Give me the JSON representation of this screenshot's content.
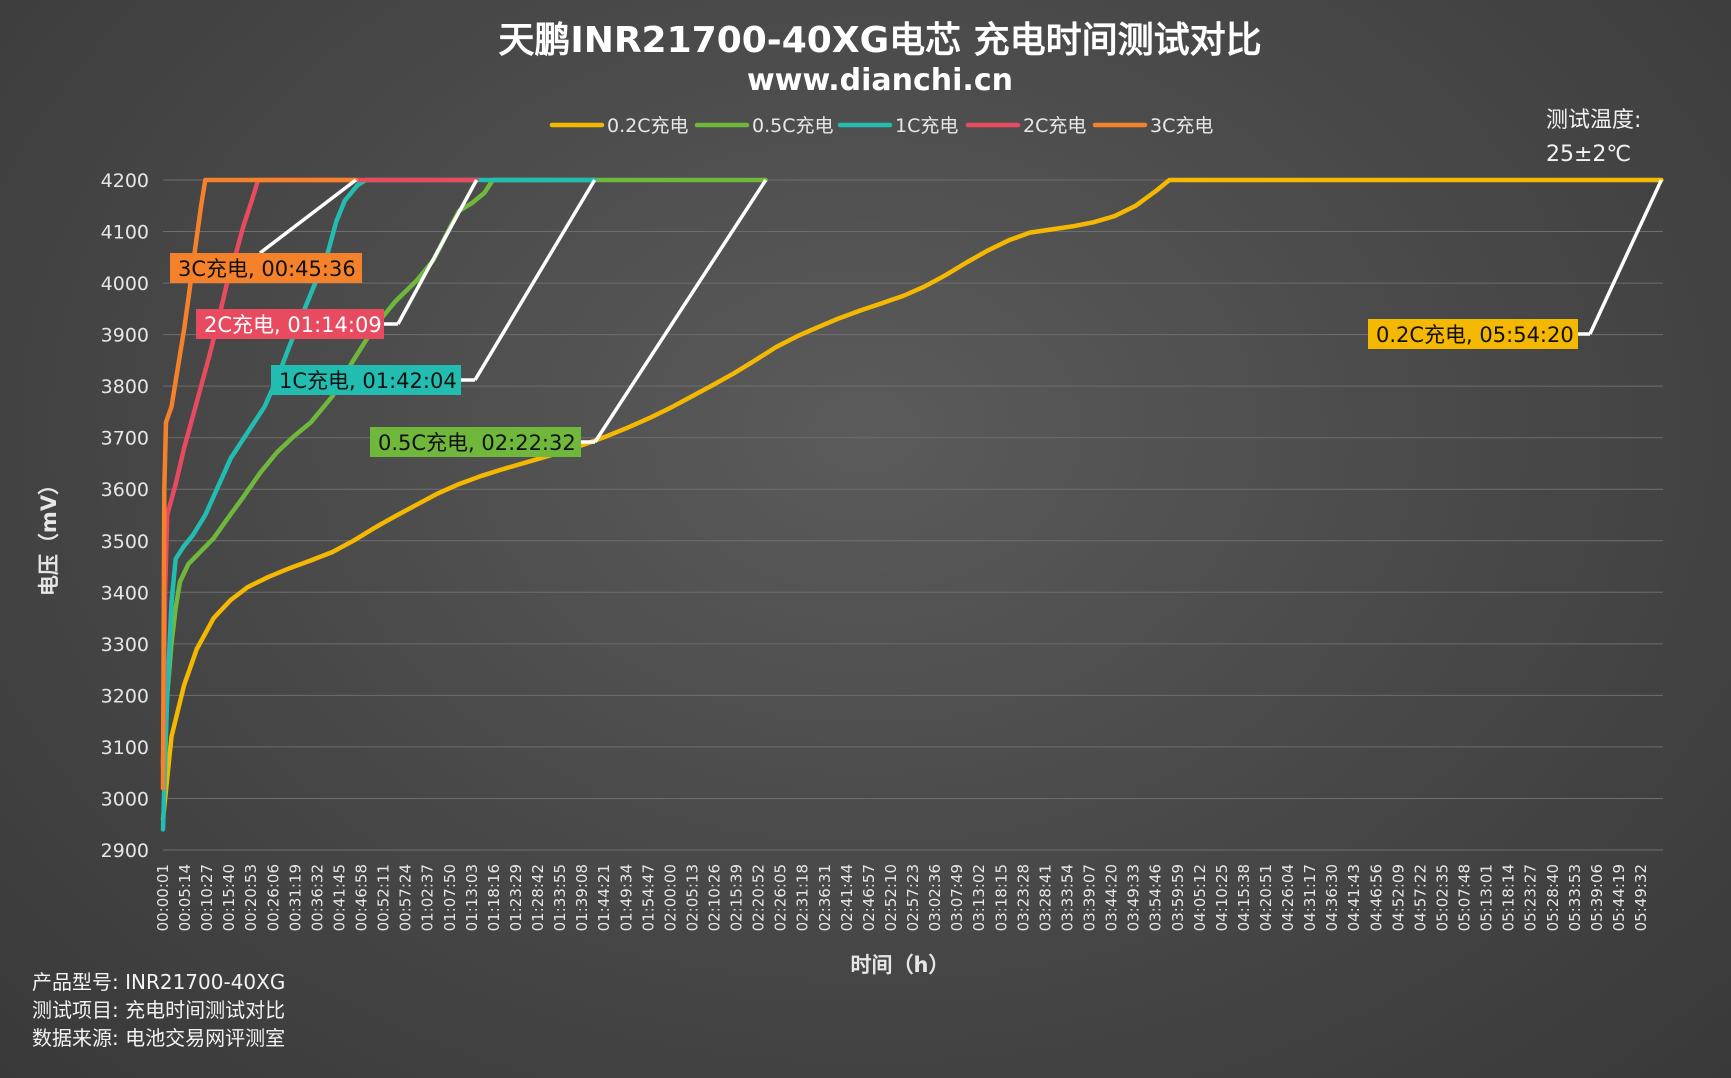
{
  "chart_data": {
    "type": "line",
    "title": "天鹏INR21700-40XG电芯 充电时间测试对比",
    "subtitle": "www.dianchi.cn",
    "xlabel": "时间（h）",
    "ylabel": "电压（mV）",
    "ylim": [
      2900,
      4200
    ],
    "yticks": [
      2900,
      3000,
      3100,
      3200,
      3300,
      3400,
      3500,
      3600,
      3700,
      3800,
      3900,
      4000,
      4100,
      4200
    ],
    "x_tick_labels": [
      "00:00:01",
      "00:05:14",
      "00:10:27",
      "00:15:40",
      "00:20:53",
      "00:26:06",
      "00:31:19",
      "00:36:32",
      "00:41:45",
      "00:46:58",
      "00:52:11",
      "00:57:24",
      "01:02:37",
      "01:07:50",
      "01:13:03",
      "01:18:16",
      "01:23:29",
      "01:28:42",
      "01:33:55",
      "01:39:08",
      "01:44:21",
      "01:49:34",
      "01:54:47",
      "02:00:00",
      "02:05:13",
      "02:10:26",
      "02:15:39",
      "02:20:52",
      "02:26:05",
      "02:31:18",
      "02:36:31",
      "02:41:44",
      "02:46:57",
      "02:52:10",
      "02:57:23",
      "03:02:36",
      "03:07:49",
      "03:13:02",
      "03:18:15",
      "03:23:28",
      "03:28:41",
      "03:33:54",
      "03:39:07",
      "03:44:20",
      "03:49:33",
      "03:54:46",
      "03:59:59",
      "04:05:12",
      "04:10:25",
      "04:15:38",
      "04:20:51",
      "04:26:04",
      "04:31:17",
      "04:36:30",
      "04:41:43",
      "04:46:56",
      "04:52:09",
      "04:57:22",
      "05:02:35",
      "05:07:48",
      "05:13:01",
      "05:18:14",
      "05:23:27",
      "05:28:40",
      "05:33:53",
      "05:39:06",
      "05:44:19",
      "05:49:32"
    ],
    "grid": true,
    "legend_position": "top",
    "series": [
      {
        "name": "0.2C充电",
        "color": "#f5b800",
        "points": [
          [
            0,
            2960
          ],
          [
            2,
            3120
          ],
          [
            5,
            3220
          ],
          [
            8,
            3290
          ],
          [
            12,
            3350
          ],
          [
            16,
            3385
          ],
          [
            20,
            3410
          ],
          [
            25,
            3430
          ],
          [
            30,
            3447
          ],
          [
            35,
            3462
          ],
          [
            40,
            3478
          ],
          [
            45,
            3500
          ],
          [
            50,
            3525
          ],
          [
            55,
            3548
          ],
          [
            60,
            3570
          ],
          [
            65,
            3592
          ],
          [
            70,
            3610
          ],
          [
            75,
            3625
          ],
          [
            80,
            3638
          ],
          [
            85,
            3650
          ],
          [
            90,
            3662
          ],
          [
            95,
            3674
          ],
          [
            100,
            3688
          ],
          [
            105,
            3703
          ],
          [
            110,
            3720
          ],
          [
            115,
            3738
          ],
          [
            120,
            3758
          ],
          [
            125,
            3780
          ],
          [
            130,
            3802
          ],
          [
            135,
            3825
          ],
          [
            140,
            3850
          ],
          [
            145,
            3876
          ],
          [
            150,
            3897
          ],
          [
            155,
            3915
          ],
          [
            160,
            3932
          ],
          [
            165,
            3947
          ],
          [
            170,
            3961
          ],
          [
            175,
            3975
          ],
          [
            180,
            3993
          ],
          [
            185,
            4015
          ],
          [
            190,
            4040
          ],
          [
            195,
            4063
          ],
          [
            200,
            4083
          ],
          [
            205,
            4098
          ],
          [
            210,
            4104
          ],
          [
            215,
            4110
          ],
          [
            220,
            4118
          ],
          [
            225,
            4130
          ],
          [
            230,
            4150
          ],
          [
            235,
            4180
          ],
          [
            238,
            4200
          ],
          [
            354.33,
            4200
          ]
        ]
      },
      {
        "name": "0.5C充电",
        "color": "#70b83c",
        "points": [
          [
            0,
            3070
          ],
          [
            1,
            3200
          ],
          [
            2,
            3300
          ],
          [
            3,
            3370
          ],
          [
            4,
            3420
          ],
          [
            6,
            3455
          ],
          [
            9,
            3480
          ],
          [
            12,
            3505
          ],
          [
            15,
            3540
          ],
          [
            19,
            3585
          ],
          [
            23,
            3632
          ],
          [
            27,
            3672
          ],
          [
            31,
            3703
          ],
          [
            35,
            3730
          ],
          [
            40,
            3780
          ],
          [
            45,
            3850
          ],
          [
            50,
            3915
          ],
          [
            55,
            3965
          ],
          [
            60,
            4005
          ],
          [
            64,
            4045
          ],
          [
            68,
            4110
          ],
          [
            70,
            4140
          ],
          [
            73,
            4155
          ],
          [
            76,
            4175
          ],
          [
            78,
            4200
          ],
          [
            142.53,
            4200
          ]
        ]
      },
      {
        "name": "1C充电",
        "color": "#22bdb0",
        "points": [
          [
            0,
            2940
          ],
          [
            1,
            3200
          ],
          [
            2,
            3380
          ],
          [
            3,
            3465
          ],
          [
            5,
            3490
          ],
          [
            7,
            3510
          ],
          [
            10,
            3550
          ],
          [
            13,
            3605
          ],
          [
            16,
            3660
          ],
          [
            20,
            3710
          ],
          [
            24,
            3760
          ],
          [
            27,
            3815
          ],
          [
            30,
            3880
          ],
          [
            33,
            3940
          ],
          [
            36,
            4000
          ],
          [
            39,
            4060
          ],
          [
            41,
            4120
          ],
          [
            43,
            4160
          ],
          [
            46,
            4190
          ],
          [
            48,
            4200
          ],
          [
            102.07,
            4200
          ]
        ]
      },
      {
        "name": "2C充电",
        "color": "#e84a5f",
        "points": [
          [
            0,
            3060
          ],
          [
            0.5,
            3400
          ],
          [
            1,
            3550
          ],
          [
            3,
            3610
          ],
          [
            5,
            3680
          ],
          [
            7,
            3740
          ],
          [
            9,
            3800
          ],
          [
            11,
            3860
          ],
          [
            13,
            3925
          ],
          [
            15,
            3995
          ],
          [
            17,
            4050
          ],
          [
            19,
            4110
          ],
          [
            21,
            4160
          ],
          [
            22.5,
            4200
          ],
          [
            74.15,
            4200
          ]
        ]
      },
      {
        "name": "3C充电",
        "color": "#f5822a",
        "points": [
          [
            0,
            3020
          ],
          [
            0.3,
            3600
          ],
          [
            0.7,
            3730
          ],
          [
            2,
            3760
          ],
          [
            3,
            3810
          ],
          [
            4,
            3860
          ],
          [
            5,
            3910
          ],
          [
            6,
            3970
          ],
          [
            7,
            4030
          ],
          [
            8,
            4090
          ],
          [
            9,
            4150
          ],
          [
            10,
            4200
          ],
          [
            45.6,
            4200
          ]
        ]
      }
    ],
    "annotations": [
      {
        "text": "3C充电, 00:45:36",
        "series": "3C充电",
        "bg": "#f5822a",
        "text_color": "dark"
      },
      {
        "text": "2C充电, 01:14:09",
        "series": "2C充电",
        "bg": "#e84a5f",
        "text_color": "white"
      },
      {
        "text": "1C充电, 01:42:04",
        "series": "1C充电",
        "bg": "#22bdb0",
        "text_color": "dark"
      },
      {
        "text": "0.5C充电, 02:22:32",
        "series": "0.5C充电",
        "bg": "#70b83c",
        "text_color": "dark"
      },
      {
        "text": "0.2C充电, 05:54:20",
        "series": "0.2C充电",
        "bg": "#f5b800",
        "text_color": "dark"
      }
    ]
  },
  "temperature": {
    "label": "测试温度:",
    "value": "25±2℃"
  },
  "footer": {
    "model": "产品型号: INR21700-40XG",
    "item": "测试项目: 充电时间测试对比",
    "source": "数据来源: 电池交易网评测室"
  }
}
